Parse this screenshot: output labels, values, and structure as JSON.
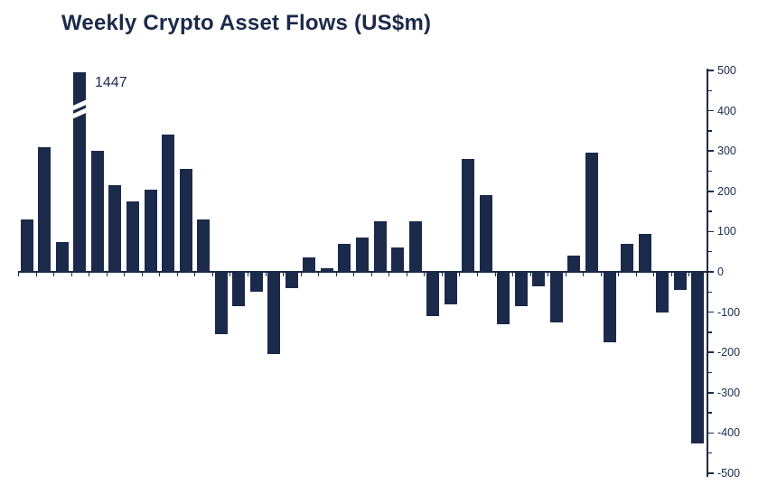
{
  "chart_data": {
    "type": "bar",
    "title": "Weekly Crypto Asset Flows (US$m)",
    "ylabel": "",
    "xlabel": "",
    "ylim": [
      -500,
      500
    ],
    "y_ticks_major": [
      500,
      400,
      300,
      200,
      100,
      0,
      -100,
      -200,
      -300,
      -400,
      -500
    ],
    "y_minor_tick_step": 50,
    "axis_side": "right",
    "grid": "off",
    "legend": "none",
    "bar_color": "#1b2a4a",
    "values": [
      130,
      310,
      75,
      1447,
      300,
      215,
      175,
      205,
      340,
      255,
      130,
      -155,
      -85,
      -50,
      -205,
      -40,
      35,
      8,
      70,
      85,
      125,
      60,
      125,
      -110,
      -80,
      280,
      190,
      -130,
      -85,
      -35,
      -125,
      40,
      295,
      -175,
      70,
      95,
      -100,
      -45,
      -425
    ],
    "broken_bar": {
      "index": 3,
      "value": 1447,
      "label": "1447",
      "clip_display_at": 495
    }
  }
}
